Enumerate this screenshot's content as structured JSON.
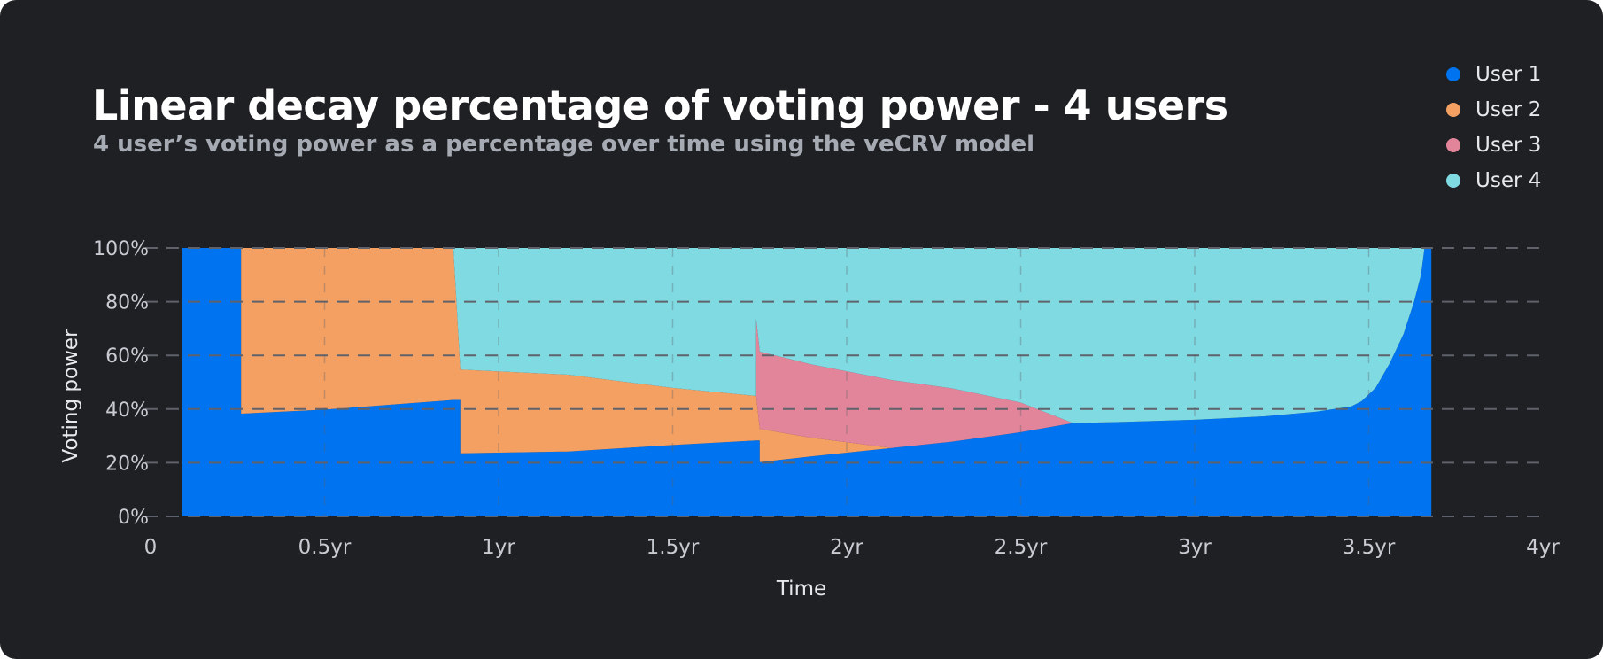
{
  "colors": {
    "background": "#1f2024",
    "title": "#ffffff",
    "subtitle": "#a6aab3",
    "axis_text": "#c8cbd2",
    "grid": "#5f626a"
  },
  "chart_data": {
    "type": "area",
    "stacked": true,
    "normalized_percent": true,
    "title": "Linear decay percentage of voting power - 4 users",
    "subtitle": "4 user’s voting power as a percentage over time using the veCRV model",
    "xlabel": "Time",
    "ylabel": "Voting power",
    "xlim": [
      0,
      4
    ],
    "ylim": [
      0,
      100
    ],
    "x_ticks": [
      {
        "value": 0,
        "label": "0"
      },
      {
        "value": 0.5,
        "label": "0.5yr"
      },
      {
        "value": 1,
        "label": "1yr"
      },
      {
        "value": 1.5,
        "label": "1.5yr"
      },
      {
        "value": 2,
        "label": "2yr"
      },
      {
        "value": 2.5,
        "label": "2.5yr"
      },
      {
        "value": 3,
        "label": "3yr"
      },
      {
        "value": 3.5,
        "label": "3.5yr"
      },
      {
        "value": 4,
        "label": "4yr"
      }
    ],
    "y_ticks": [
      {
        "value": 0,
        "label": "0%"
      },
      {
        "value": 20,
        "label": "20%"
      },
      {
        "value": 40,
        "label": "40%"
      },
      {
        "value": 60,
        "label": "60%"
      },
      {
        "value": 80,
        "label": "80%"
      },
      {
        "value": 100,
        "label": "100%"
      }
    ],
    "grid": true,
    "legend_position": "top-right",
    "x": [
      0.09,
      0.26,
      0.26,
      0.5,
      0.87,
      0.87,
      0.89,
      0.89,
      1.2,
      1.5,
      1.74,
      1.74,
      1.75,
      1.75,
      1.9,
      2.13,
      2.13,
      2.3,
      2.5,
      2.65,
      2.65,
      2.8,
      3.0,
      3.2,
      3.35,
      3.45,
      3.48,
      3.52,
      3.56,
      3.6,
      3.63,
      3.65,
      3.66,
      3.66,
      3.68
    ],
    "series": [
      {
        "name": "User 1",
        "color": "#0073f0",
        "values": [
          100,
          100,
          38.3,
          39.8,
          43.4,
          43.4,
          43.4,
          23.5,
          24.2,
          26.6,
          28.3,
          28.3,
          28.3,
          20.2,
          22.4,
          25.5,
          25.5,
          27.8,
          31.4,
          34.8,
          34.8,
          35.2,
          36.0,
          37.3,
          39.0,
          41.0,
          43.0,
          48.0,
          57.0,
          68.0,
          80.0,
          90.0,
          100,
          100,
          100
        ]
      },
      {
        "name": "User 2",
        "color": "#f4a062",
        "values": [
          0,
          0,
          61.7,
          60.2,
          56.6,
          56.6,
          11.2,
          31.2,
          28.6,
          21.3,
          16.6,
          16.6,
          4.3,
          12.4,
          6.9,
          0,
          0,
          0,
          0,
          0,
          0,
          0,
          0,
          0,
          0,
          0,
          0,
          0,
          0,
          0,
          0,
          0,
          0,
          0,
          0
        ]
      },
      {
        "name": "User 3",
        "color": "#e2849a",
        "values": [
          0,
          0,
          0,
          0,
          0,
          0,
          0,
          0,
          0,
          0,
          0,
          28.8,
          28.8,
          28.8,
          27.3,
          25.3,
          25.3,
          20.0,
          11.0,
          0,
          0,
          0,
          0,
          0,
          0,
          0,
          0,
          0,
          0,
          0,
          0,
          0,
          0,
          0,
          0
        ]
      },
      {
        "name": "User 4",
        "color": "#80dae2",
        "values": [
          0,
          0,
          0,
          0,
          0,
          0,
          45.4,
          45.3,
          47.2,
          52.1,
          55.1,
          26.3,
          38.6,
          38.6,
          43.4,
          49.2,
          49.2,
          52.2,
          57.6,
          65.2,
          65.2,
          64.8,
          64.0,
          62.7,
          61.0,
          59.0,
          57.0,
          52.0,
          43.0,
          32.0,
          20.0,
          10.0,
          0,
          0,
          0
        ]
      }
    ]
  }
}
